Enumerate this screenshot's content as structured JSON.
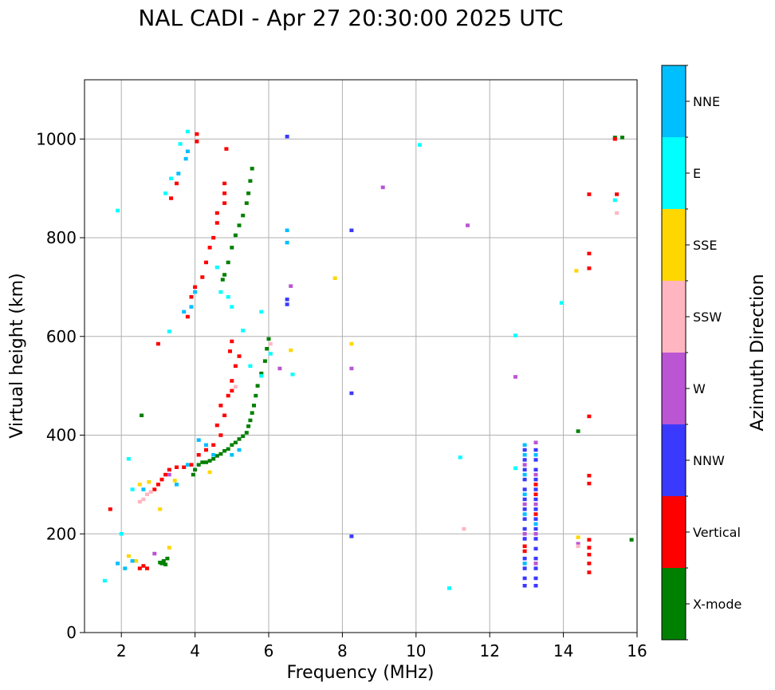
{
  "chart_data": {
    "type": "scatter",
    "title": "NAL CADI - Apr 27 20:30:00 2025 UTC",
    "xlabel": "Frequency (MHz)",
    "ylabel": "Virtual height (km)",
    "xlim": [
      1,
      16
    ],
    "ylim": [
      0,
      1120
    ],
    "xticks": [
      2,
      4,
      6,
      8,
      10,
      12,
      14,
      16
    ],
    "yticks": [
      0,
      200,
      400,
      600,
      800,
      1000
    ],
    "xtick_labels": [
      "2",
      "4",
      "6",
      "8",
      "10",
      "12",
      "14",
      "16"
    ],
    "ytick_labels": [
      "0",
      "200",
      "400",
      "600",
      "800",
      "1000"
    ],
    "grid": true,
    "colorbar": {
      "title": "Azimuth Direction",
      "categories": [
        {
          "label": "X-mode",
          "color": "#008000"
        },
        {
          "label": "Vertical",
          "color": "#ff0000"
        },
        {
          "label": "NNW",
          "color": "#3a3aff"
        },
        {
          "label": "W",
          "color": "#ba55d3"
        },
        {
          "label": "SSW",
          "color": "#ffb6c1"
        },
        {
          "label": "SSE",
          "color": "#ffd700"
        },
        {
          "label": "E",
          "color": "#00ffff"
        },
        {
          "label": "NNE",
          "color": "#00bfff"
        }
      ]
    },
    "series": [
      {
        "name": "X-mode",
        "points": [
          [
            3.1,
            140
          ],
          [
            3.15,
            145
          ],
          [
            3.2,
            138
          ],
          [
            3.25,
            150
          ],
          [
            3.05,
            142
          ],
          [
            3.95,
            320
          ],
          [
            4.0,
            330
          ],
          [
            4.1,
            340
          ],
          [
            4.2,
            345
          ],
          [
            4.3,
            345
          ],
          [
            4.4,
            348
          ],
          [
            4.5,
            352
          ],
          [
            4.6,
            358
          ],
          [
            4.7,
            362
          ],
          [
            4.8,
            368
          ],
          [
            4.9,
            372
          ],
          [
            5.0,
            380
          ],
          [
            5.1,
            385
          ],
          [
            5.2,
            392
          ],
          [
            5.3,
            398
          ],
          [
            5.4,
            405
          ],
          [
            5.45,
            418
          ],
          [
            5.5,
            430
          ],
          [
            5.55,
            445
          ],
          [
            5.6,
            460
          ],
          [
            5.65,
            480
          ],
          [
            5.7,
            500
          ],
          [
            5.8,
            525
          ],
          [
            5.9,
            550
          ],
          [
            5.95,
            575
          ],
          [
            6.0,
            595
          ],
          [
            4.75,
            715
          ],
          [
            4.8,
            725
          ],
          [
            4.9,
            750
          ],
          [
            5.0,
            780
          ],
          [
            5.1,
            805
          ],
          [
            5.2,
            825
          ],
          [
            5.3,
            845
          ],
          [
            5.4,
            870
          ],
          [
            5.45,
            890
          ],
          [
            5.5,
            915
          ],
          [
            5.55,
            940
          ],
          [
            2.55,
            440
          ],
          [
            14.4,
            408
          ],
          [
            15.4,
            1003
          ],
          [
            15.6,
            1003
          ],
          [
            15.85,
            188
          ]
        ]
      },
      {
        "name": "Vertical",
        "points": [
          [
            1.7,
            250
          ],
          [
            2.5,
            130
          ],
          [
            2.6,
            135
          ],
          [
            2.7,
            130
          ],
          [
            2.9,
            290
          ],
          [
            3.0,
            300
          ],
          [
            3.1,
            310
          ],
          [
            3.2,
            320
          ],
          [
            3.3,
            330
          ],
          [
            3.5,
            335
          ],
          [
            3.7,
            335
          ],
          [
            3.9,
            340
          ],
          [
            4.1,
            360
          ],
          [
            4.3,
            370
          ],
          [
            4.5,
            380
          ],
          [
            4.7,
            400
          ],
          [
            4.6,
            420
          ],
          [
            4.8,
            440
          ],
          [
            4.7,
            460
          ],
          [
            4.9,
            480
          ],
          [
            5.0,
            490
          ],
          [
            5.0,
            510
          ],
          [
            5.1,
            540
          ],
          [
            5.2,
            560
          ],
          [
            4.95,
            570
          ],
          [
            5.0,
            590
          ],
          [
            3.0,
            585
          ],
          [
            3.8,
            640
          ],
          [
            3.9,
            680
          ],
          [
            4.0,
            700
          ],
          [
            4.2,
            720
          ],
          [
            4.3,
            750
          ],
          [
            4.4,
            780
          ],
          [
            4.5,
            800
          ],
          [
            4.6,
            830
          ],
          [
            4.6,
            850
          ],
          [
            4.8,
            870
          ],
          [
            4.8,
            890
          ],
          [
            4.8,
            910
          ],
          [
            4.85,
            980
          ],
          [
            4.05,
            1010
          ],
          [
            4.05,
            995
          ],
          [
            3.5,
            910
          ],
          [
            3.35,
            880
          ],
          [
            14.7,
            888
          ],
          [
            15.45,
            888
          ],
          [
            14.7,
            768
          ],
          [
            14.7,
            738
          ],
          [
            14.7,
            438
          ],
          [
            14.7,
            318
          ],
          [
            14.7,
            302
          ],
          [
            14.7,
            188
          ],
          [
            14.7,
            172
          ],
          [
            14.7,
            158
          ],
          [
            14.7,
            140
          ],
          [
            14.7,
            122
          ],
          [
            15.4,
            1000
          ],
          [
            12.95,
            175
          ],
          [
            12.95,
            165
          ],
          [
            13.25,
            300
          ],
          [
            13.25,
            280
          ],
          [
            13.25,
            240
          ]
        ]
      },
      {
        "name": "NNW",
        "points": [
          [
            6.5,
            1005
          ],
          [
            6.5,
            675
          ],
          [
            6.5,
            665
          ],
          [
            8.25,
            815
          ],
          [
            8.25,
            485
          ],
          [
            8.25,
            195
          ],
          [
            12.95,
            370
          ],
          [
            12.95,
            350
          ],
          [
            12.95,
            330
          ],
          [
            12.95,
            310
          ],
          [
            12.95,
            290
          ],
          [
            12.95,
            270
          ],
          [
            12.95,
            250
          ],
          [
            12.95,
            230
          ],
          [
            12.95,
            210
          ],
          [
            12.95,
            190
          ],
          [
            12.95,
            150
          ],
          [
            12.95,
            130
          ],
          [
            12.95,
            110
          ],
          [
            12.95,
            95
          ],
          [
            13.25,
            370
          ],
          [
            13.25,
            350
          ],
          [
            13.25,
            330
          ],
          [
            13.25,
            310
          ],
          [
            13.25,
            290
          ],
          [
            13.25,
            270
          ],
          [
            13.25,
            250
          ],
          [
            13.25,
            230
          ],
          [
            13.25,
            210
          ],
          [
            13.25,
            190
          ],
          [
            13.25,
            170
          ],
          [
            13.25,
            150
          ],
          [
            13.25,
            130
          ],
          [
            13.25,
            110
          ],
          [
            13.25,
            95
          ]
        ]
      },
      {
        "name": "W",
        "points": [
          [
            6.3,
            535
          ],
          [
            6.6,
            702
          ],
          [
            8.25,
            535
          ],
          [
            9.1,
            902
          ],
          [
            11.4,
            825
          ],
          [
            12.7,
            518
          ],
          [
            2.9,
            160
          ],
          [
            3.3,
            320
          ],
          [
            12.95,
            340
          ],
          [
            12.95,
            260
          ],
          [
            12.95,
            200
          ],
          [
            13.25,
            385
          ],
          [
            13.25,
            320
          ],
          [
            13.25,
            260
          ],
          [
            13.25,
            200
          ],
          [
            13.25,
            140
          ],
          [
            14.4,
            180
          ]
        ]
      },
      {
        "name": "SSW",
        "points": [
          [
            2.5,
            265
          ],
          [
            2.6,
            270
          ],
          [
            2.7,
            280
          ],
          [
            2.8,
            285
          ],
          [
            11.3,
            210
          ],
          [
            15.45,
            850
          ],
          [
            6.05,
            585
          ],
          [
            5.1,
            498
          ],
          [
            14.4,
            175
          ]
        ]
      },
      {
        "name": "SSE",
        "points": [
          [
            2.2,
            155
          ],
          [
            2.4,
            145
          ],
          [
            2.5,
            300
          ],
          [
            2.75,
            305
          ],
          [
            3.05,
            250
          ],
          [
            3.3,
            172
          ],
          [
            3.45,
            308
          ],
          [
            4.4,
            325
          ],
          [
            6.6,
            572
          ],
          [
            7.8,
            718
          ],
          [
            8.25,
            585
          ],
          [
            14.35,
            733
          ],
          [
            14.4,
            193
          ]
        ]
      },
      {
        "name": "E",
        "points": [
          [
            1.55,
            105
          ],
          [
            1.9,
            855
          ],
          [
            2.2,
            352
          ],
          [
            2.0,
            200
          ],
          [
            2.3,
            290
          ],
          [
            3.3,
            610
          ],
          [
            3.2,
            890
          ],
          [
            3.35,
            920
          ],
          [
            3.6,
            990
          ],
          [
            3.8,
            1015
          ],
          [
            4.7,
            690
          ],
          [
            4.9,
            680
          ],
          [
            5.3,
            612
          ],
          [
            5.8,
            650
          ],
          [
            6.05,
            565
          ],
          [
            6.65,
            523
          ],
          [
            10.1,
            988
          ],
          [
            10.9,
            90
          ],
          [
            11.2,
            355
          ],
          [
            12.7,
            602
          ],
          [
            12.7,
            333
          ],
          [
            13.95,
            668
          ],
          [
            15.4,
            876
          ],
          [
            4.6,
            740
          ],
          [
            5.0,
            660
          ],
          [
            5.5,
            540
          ],
          [
            5.8,
            520
          ]
        ]
      },
      {
        "name": "NNE",
        "points": [
          [
            1.9,
            140
          ],
          [
            2.1,
            130
          ],
          [
            2.3,
            145
          ],
          [
            2.6,
            290
          ],
          [
            3.5,
            300
          ],
          [
            3.8,
            340
          ],
          [
            4.0,
            690
          ],
          [
            3.9,
            660
          ],
          [
            3.7,
            650
          ],
          [
            3.55,
            930
          ],
          [
            3.75,
            960
          ],
          [
            3.8,
            975
          ],
          [
            4.1,
            390
          ],
          [
            4.3,
            380
          ],
          [
            4.5,
            360
          ],
          [
            5.0,
            360
          ],
          [
            5.2,
            370
          ],
          [
            6.5,
            815
          ],
          [
            6.5,
            790
          ],
          [
            12.95,
            380
          ],
          [
            12.95,
            360
          ],
          [
            12.95,
            320
          ],
          [
            12.95,
            280
          ],
          [
            12.95,
            240
          ],
          [
            12.95,
            140
          ],
          [
            13.25,
            360
          ],
          [
            13.25,
            220
          ]
        ]
      }
    ]
  }
}
